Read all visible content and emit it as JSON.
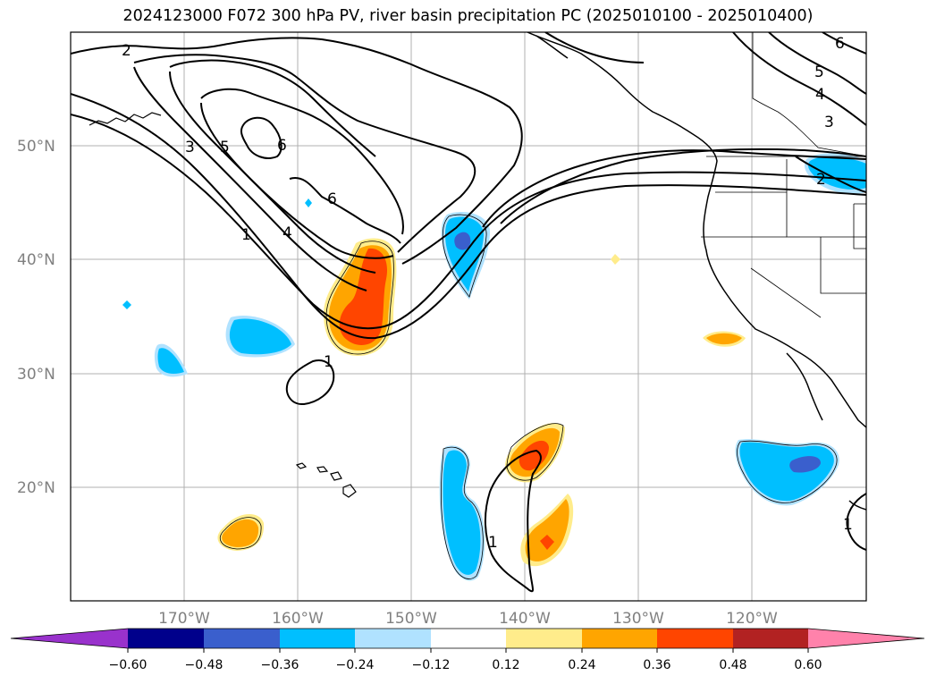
{
  "title": "2024123000 F072 300 hPa PV, river basin precipitation PC (2025010100 - 2025010400)",
  "lat_labels": [
    "50°N",
    "40°N",
    "30°N",
    "20°N"
  ],
  "lon_labels": [
    "170°W",
    "160°W",
    "150°W",
    "140°W",
    "130°W",
    "120°W"
  ],
  "map": {
    "lon_range": [
      -180,
      -110
    ],
    "lat_range": [
      10,
      60
    ],
    "gridlines": true,
    "contour_field": "300 hPa PV",
    "contour_labels": [
      "2",
      "3",
      "5",
      "6",
      "1",
      "4",
      "6",
      "1",
      "1",
      "6",
      "5",
      "4",
      "3",
      "2",
      "1"
    ]
  },
  "colorbar": {
    "ticks": [
      "−0.60",
      "−0.48",
      "−0.36",
      "−0.24",
      "−0.12",
      "0.12",
      "0.24",
      "0.36",
      "0.48",
      "0.60"
    ],
    "bins": [
      {
        "color": "#9932CC"
      },
      {
        "color": "#00008B"
      },
      {
        "color": "#3A5FCD"
      },
      {
        "color": "#00BFFF"
      },
      {
        "color": "#B0E2FF"
      },
      {
        "color": "#FFFFFF"
      },
      {
        "color": "#FFEC8B"
      },
      {
        "color": "#FFA500"
      },
      {
        "color": "#FF4500"
      },
      {
        "color": "#B22222"
      },
      {
        "color": "#FF82AB"
      }
    ],
    "extend": "both"
  }
}
